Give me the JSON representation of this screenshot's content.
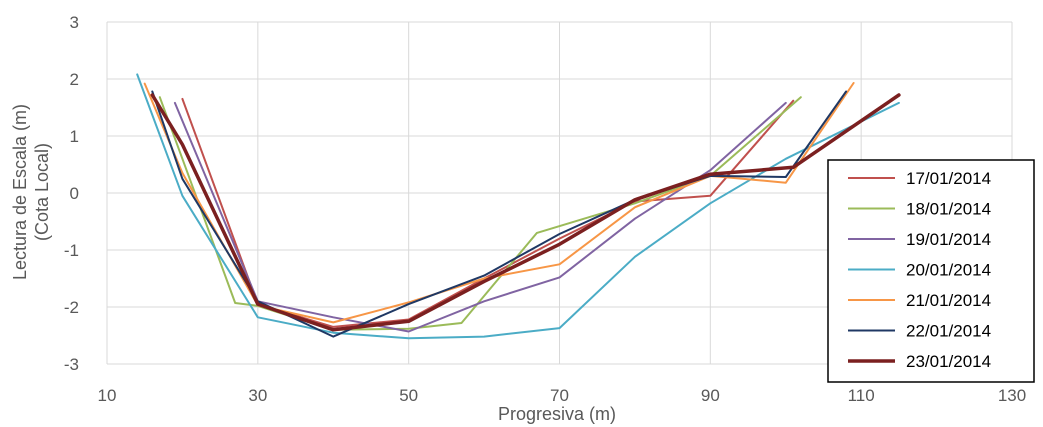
{
  "chart_data": {
    "type": "line",
    "xlabel": "Progresiva (m)",
    "ylabel": [
      "Lectura de Escala (m)",
      "(Cota Local)"
    ],
    "xlim": [
      10,
      130
    ],
    "ylim": [
      -3,
      3
    ],
    "xticks": [
      "10",
      "30",
      "50",
      "70",
      "90",
      "110",
      "130"
    ],
    "yticks": [
      "3",
      "2",
      "1",
      "0",
      "-1",
      "-2",
      "-3"
    ],
    "grid": true,
    "legend_position": "right",
    "series": [
      {
        "name": "17/01/2014",
        "color": "#C0504D",
        "width": 2,
        "x": [
          20,
          30,
          40,
          50,
          60,
          70,
          80,
          90,
          101
        ],
        "y": [
          1.65,
          -1.95,
          -2.35,
          -2.22,
          -1.5,
          -0.8,
          -0.15,
          -0.05,
          1.62
        ]
      },
      {
        "name": "18/01/2014",
        "color": "#9BBB59",
        "width": 2,
        "x": [
          17,
          20,
          27,
          30,
          40,
          50,
          57,
          67,
          80,
          90,
          102
        ],
        "y": [
          1.68,
          0.6,
          -1.93,
          -1.98,
          -2.4,
          -2.38,
          -2.28,
          -0.7,
          -0.18,
          0.3,
          1.68
        ]
      },
      {
        "name": "19/01/2014",
        "color": "#8064A2",
        "width": 2,
        "x": [
          19,
          30,
          40,
          50,
          60,
          70,
          80,
          90,
          100
        ],
        "y": [
          1.58,
          -1.9,
          -2.18,
          -2.43,
          -1.9,
          -1.48,
          -0.45,
          0.4,
          1.58
        ]
      },
      {
        "name": "20/01/2014",
        "color": "#4BACC6",
        "width": 2,
        "x": [
          14,
          20,
          30,
          40,
          50,
          60,
          70,
          80,
          90,
          100,
          115
        ],
        "y": [
          2.08,
          -0.05,
          -2.18,
          -2.45,
          -2.55,
          -2.52,
          -2.37,
          -1.12,
          -0.18,
          0.6,
          1.58
        ]
      },
      {
        "name": "21/01/2014",
        "color": "#F79646",
        "width": 2,
        "x": [
          15,
          20,
          30,
          40,
          50,
          60,
          70,
          80,
          90,
          100,
          109
        ],
        "y": [
          1.92,
          0.35,
          -1.97,
          -2.27,
          -1.92,
          -1.5,
          -1.25,
          -0.25,
          0.3,
          0.18,
          1.93
        ]
      },
      {
        "name": "22/01/2014",
        "color": "#1F3864",
        "width": 2,
        "x": [
          16,
          20,
          30,
          40,
          50,
          60,
          70,
          80,
          90,
          100,
          108
        ],
        "y": [
          1.78,
          0.25,
          -1.9,
          -2.52,
          -1.95,
          -1.45,
          -0.72,
          -0.12,
          0.3,
          0.28,
          1.78
        ]
      },
      {
        "name": "23/01/2014",
        "color": "#7B2020",
        "width": 3.5,
        "x": [
          16,
          20,
          30,
          40,
          50,
          60,
          70,
          80,
          90,
          101,
          115
        ],
        "y": [
          1.72,
          0.85,
          -1.95,
          -2.4,
          -2.25,
          -1.55,
          -0.9,
          -0.12,
          0.33,
          0.45,
          1.72
        ]
      }
    ]
  }
}
